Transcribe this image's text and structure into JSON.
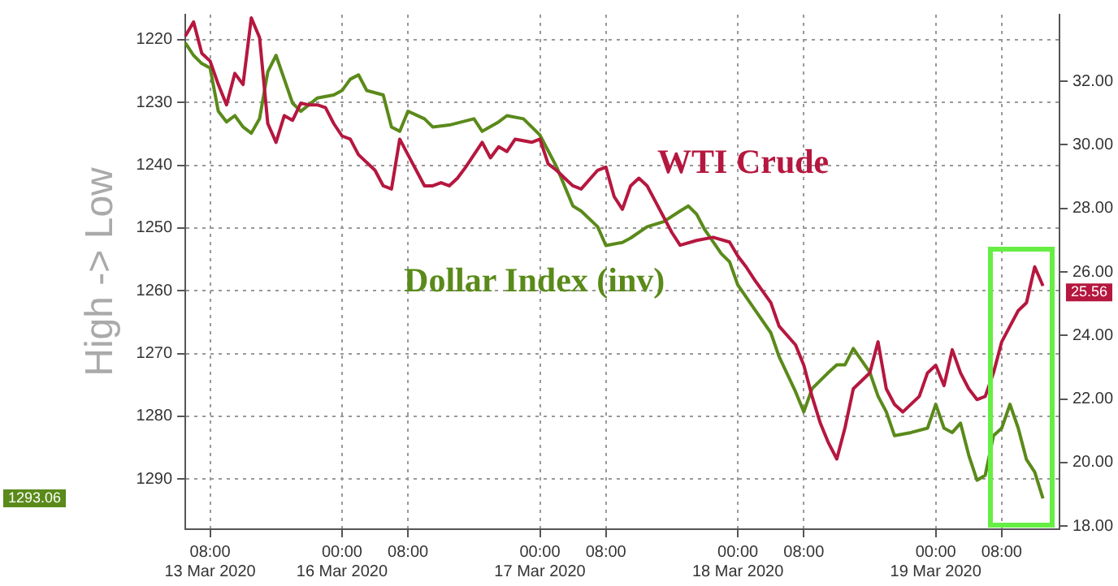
{
  "chart_data": {
    "type": "line",
    "ylabel": "High -> Low",
    "categories": [
      null,
      null,
      null,
      "08:00\n13 Mar 2020",
      null,
      null,
      null,
      null,
      null,
      null,
      null,
      null,
      null,
      null,
      null,
      null,
      null,
      null,
      null,
      "00:00\n16 Mar 2020",
      null,
      null,
      null,
      null,
      null,
      null,
      null,
      "08:00",
      null,
      null,
      null,
      null,
      null,
      null,
      null,
      null,
      null,
      null,
      null,
      null,
      null,
      null,
      null,
      "00:00\n17 Mar 2020",
      null,
      null,
      null,
      null,
      null,
      null,
      null,
      "08:00",
      null,
      null,
      null,
      null,
      null,
      null,
      null,
      null,
      null,
      null,
      null,
      null,
      null,
      null,
      null,
      "00:00\n18 Mar 2020",
      null,
      null,
      null,
      null,
      null,
      null,
      null,
      "08:00",
      null,
      null,
      null,
      null,
      null,
      null,
      null,
      null,
      null,
      null,
      null,
      null,
      null,
      null,
      null,
      "00:00\n19 Mar 2020",
      null,
      null,
      null,
      null,
      null,
      null,
      null,
      "08:00",
      null,
      null,
      null,
      null,
      null,
      null,
      null
    ],
    "ylim": [
      1298,
      1216
    ],
    "yticks": [
      1220,
      1230,
      1240,
      1250,
      1260,
      1270,
      1280,
      1290
    ],
    "y2lim": [
      17.9,
      34.1
    ],
    "y2ticks": [
      {
        "value": 18,
        "label": "18.00"
      },
      {
        "value": 20,
        "label": "20.00"
      },
      {
        "value": 22,
        "label": "22.00"
      },
      {
        "value": 24,
        "label": "24.00"
      },
      {
        "value": 26,
        "label": "26.00"
      },
      {
        "value": 28,
        "label": "28.00"
      },
      {
        "value": 30,
        "label": "30.00"
      },
      {
        "value": 32,
        "label": "32.00"
      }
    ],
    "grid": true,
    "marker": "none",
    "legend": false,
    "annotations": [
      "25.56",
      "1293.06"
    ],
    "series": [
      {
        "name": "WTI Crude",
        "color": "#b5173f",
        "axis": "y2",
        "values": [
          33.42,
          33.87,
          32.88,
          32.64,
          31.9,
          31.26,
          32.25,
          31.9,
          34.0,
          33.38,
          30.67,
          30.08,
          30.92,
          30.77,
          31.31,
          31.26,
          31.26,
          31.17,
          30.67,
          30.28,
          30.18,
          29.69,
          null,
          29.2,
          28.71,
          28.61,
          30.18,
          29.69,
          29.2,
          28.71,
          28.71,
          28.81,
          28.71,
          28.95,
          29.3,
          29.69,
          30.08,
          29.59,
          29.94,
          29.79,
          30.18,
          null,
          30.08,
          30.18,
          29.4,
          29.2,
          28.95,
          28.71,
          28.61,
          null,
          29.2,
          29.3,
          28.37,
          27.97,
          28.71,
          28.95,
          28.71,
          28.22,
          null,
          27.24,
          26.84,
          null,
          26.99,
          null,
          27.09,
          null,
          26.94,
          26.5,
          26.16,
          25.76,
          null,
          25.03,
          24.29,
          null,
          23.7,
          23.06,
          22.08,
          21.24,
          20.61,
          20.11,
          21.1,
          22.32,
          22.57,
          22.82,
          23.8,
          22.32,
          21.83,
          21.59,
          null,
          22.08,
          22.82,
          23.06,
          22.42,
          23.55,
          22.82,
          22.32,
          21.98,
          22.08,
          22.82,
          23.8,
          24.29,
          24.78,
          25.03,
          26.16,
          25.56,
          null,
          null
        ]
      },
      {
        "name": "Dollar Index (inv)",
        "color": "#5a8a1a",
        "values": [
          1220.5,
          1222.5,
          1223.8,
          1224.5,
          1231.4,
          1233.1,
          1232.1,
          1233.9,
          1234.9,
          1232.6,
          1225.1,
          1222.5,
          1226.3,
          1230.1,
          1231.4,
          null,
          1229.3,
          null,
          1228.8,
          1228.1,
          1226.3,
          1225.6,
          1228.1,
          null,
          1228.8,
          1233.9,
          1234.6,
          1231.4,
          null,
          1232.6,
          1233.9,
          null,
          1233.6,
          null,
          null,
          1232.6,
          1234.6,
          null,
          1233.1,
          1232.1,
          null,
          1232.6,
          null,
          1235.2,
          null,
          1240.2,
          null,
          1246.5,
          1247.3,
          null,
          1249.8,
          1252.8,
          null,
          1252.3,
          1251.6,
          null,
          1249.8,
          null,
          1249.0,
          null,
          1247.3,
          1246.5,
          1247.8,
          1250.3,
          null,
          1254.1,
          1255.4,
          1259.1,
          null,
          1262.9,
          null,
          1266.7,
          1270.5,
          null,
          1276.1,
          1279.3,
          1275.6,
          null,
          1273.0,
          1271.8,
          1271.8,
          1269.2,
          null,
          1273.0,
          1276.8,
          1279.3,
          1283.1,
          null,
          1282.6,
          null,
          1281.9,
          1278.1,
          1281.9,
          1282.6,
          1281.1,
          1286.2,
          1290.2,
          1289.4,
          1283.1,
          1281.9,
          1278.1,
          1281.9,
          1286.9,
          1288.9,
          1293.1,
          null,
          null
        ]
      }
    ]
  }
}
